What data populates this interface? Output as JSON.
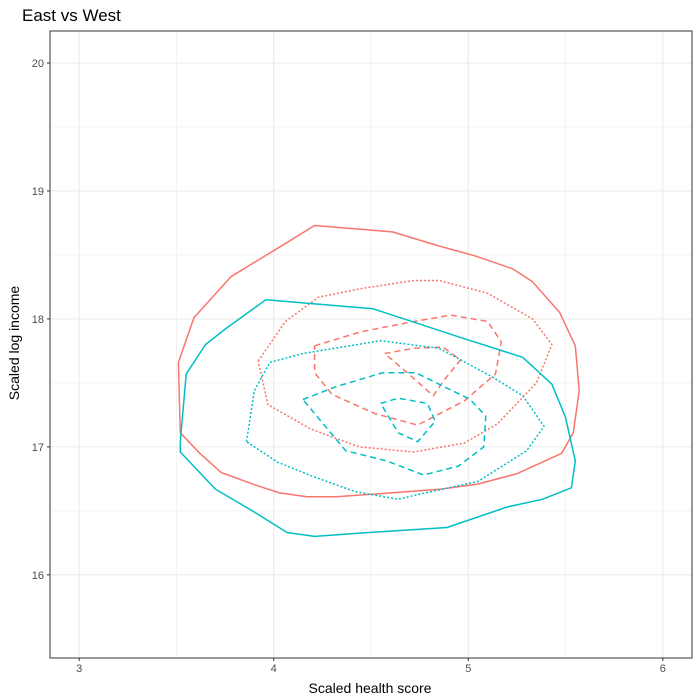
{
  "chart_data": {
    "type": "line",
    "subtype": "density-contour",
    "title": "East vs West",
    "xlabel": "Scaled health score",
    "ylabel": "Scaled log income",
    "xlim": [
      2.85,
      6.15
    ],
    "ylim": [
      15.35,
      20.25
    ],
    "xticks": [
      3,
      4,
      5,
      6
    ],
    "yticks": [
      16,
      17,
      18,
      19,
      20
    ],
    "grid": true,
    "legend": "none",
    "colors": {
      "red": "#F8766D",
      "teal": "#00BFC4",
      "grid": "#EBEBEB",
      "border": "#333333"
    },
    "series": [
      {
        "color": "#F8766D",
        "dash": "solid",
        "points": [
          [
            3.51,
            17.66
          ],
          [
            3.59,
            18.01
          ],
          [
            3.78,
            18.33
          ],
          [
            4.05,
            18.58
          ],
          [
            4.21,
            18.73
          ],
          [
            4.61,
            18.68
          ],
          [
            4.85,
            18.57
          ],
          [
            5.04,
            18.49
          ],
          [
            5.23,
            18.39
          ],
          [
            5.33,
            18.29
          ],
          [
            5.47,
            18.05
          ],
          [
            5.55,
            17.79
          ],
          [
            5.57,
            17.44
          ],
          [
            5.54,
            17.11
          ],
          [
            5.48,
            16.95
          ],
          [
            5.25,
            16.79
          ],
          [
            5.05,
            16.71
          ],
          [
            4.86,
            16.67
          ],
          [
            4.6,
            16.64
          ],
          [
            4.32,
            16.61
          ],
          [
            4.17,
            16.61
          ],
          [
            4.03,
            16.64
          ],
          [
            3.91,
            16.7
          ],
          [
            3.73,
            16.8
          ],
          [
            3.62,
            16.95
          ],
          [
            3.52,
            17.11
          ],
          [
            3.51,
            17.66
          ]
        ]
      },
      {
        "color": "#F8766D",
        "dash": "dotted",
        "points": [
          [
            3.92,
            17.67
          ],
          [
            4.06,
            17.98
          ],
          [
            4.23,
            18.17
          ],
          [
            4.46,
            18.24
          ],
          [
            4.72,
            18.3
          ],
          [
            4.85,
            18.3
          ],
          [
            5.1,
            18.2
          ],
          [
            5.33,
            18.0
          ],
          [
            5.43,
            17.8
          ],
          [
            5.35,
            17.5
          ],
          [
            5.15,
            17.18
          ],
          [
            4.98,
            17.03
          ],
          [
            4.72,
            16.96
          ],
          [
            4.44,
            17.0
          ],
          [
            4.19,
            17.14
          ],
          [
            3.97,
            17.33
          ],
          [
            3.92,
            17.67
          ]
        ]
      },
      {
        "color": "#F8766D",
        "dash": "dashed",
        "points": [
          [
            4.21,
            17.79
          ],
          [
            4.45,
            17.9
          ],
          [
            4.72,
            17.98
          ],
          [
            4.91,
            18.03
          ],
          [
            5.1,
            17.98
          ],
          [
            5.17,
            17.82
          ],
          [
            5.14,
            17.57
          ],
          [
            4.98,
            17.36
          ],
          [
            4.74,
            17.17
          ],
          [
            4.52,
            17.26
          ],
          [
            4.3,
            17.41
          ],
          [
            4.21,
            17.58
          ],
          [
            4.21,
            17.79
          ]
        ]
      },
      {
        "color": "#F8766D",
        "dash": "dashed",
        "points": [
          [
            4.57,
            17.73
          ],
          [
            4.72,
            17.77
          ],
          [
            4.87,
            17.78
          ],
          [
            4.96,
            17.68
          ],
          [
            4.88,
            17.53
          ],
          [
            4.82,
            17.4
          ],
          [
            4.67,
            17.6
          ],
          [
            4.57,
            17.73
          ]
        ]
      },
      {
        "color": "#00BFC4",
        "dash": "solid",
        "points": [
          [
            3.52,
            17.04
          ],
          [
            3.55,
            17.57
          ],
          [
            3.65,
            17.8
          ],
          [
            3.75,
            17.92
          ],
          [
            3.96,
            18.15
          ],
          [
            4.51,
            18.08
          ],
          [
            4.95,
            17.86
          ],
          [
            5.28,
            17.7
          ],
          [
            5.43,
            17.49
          ],
          [
            5.5,
            17.23
          ],
          [
            5.55,
            16.89
          ],
          [
            5.53,
            16.68
          ],
          [
            5.38,
            16.59
          ],
          [
            5.2,
            16.53
          ],
          [
            4.89,
            16.37
          ],
          [
            4.48,
            16.33
          ],
          [
            4.21,
            16.3
          ],
          [
            4.07,
            16.33
          ],
          [
            3.89,
            16.5
          ],
          [
            3.7,
            16.67
          ],
          [
            3.52,
            16.96
          ],
          [
            3.52,
            17.04
          ]
        ]
      },
      {
        "color": "#00BFC4",
        "dash": "dotted",
        "points": [
          [
            3.86,
            17.04
          ],
          [
            3.9,
            17.44
          ],
          [
            3.98,
            17.66
          ],
          [
            4.15,
            17.73
          ],
          [
            4.55,
            17.83
          ],
          [
            4.85,
            17.77
          ],
          [
            5.12,
            17.55
          ],
          [
            5.28,
            17.4
          ],
          [
            5.39,
            17.16
          ],
          [
            5.3,
            16.97
          ],
          [
            5.05,
            16.73
          ],
          [
            4.72,
            16.62
          ],
          [
            4.64,
            16.59
          ],
          [
            4.42,
            16.65
          ],
          [
            4.2,
            16.77
          ],
          [
            4.02,
            16.88
          ],
          [
            3.86,
            17.04
          ]
        ]
      },
      {
        "color": "#00BFC4",
        "dash": "dashed",
        "points": [
          [
            4.15,
            17.37
          ],
          [
            4.32,
            17.47
          ],
          [
            4.56,
            17.58
          ],
          [
            4.73,
            17.58
          ],
          [
            5.01,
            17.37
          ],
          [
            5.09,
            17.24
          ],
          [
            5.08,
            17.0
          ],
          [
            4.95,
            16.85
          ],
          [
            4.77,
            16.78
          ],
          [
            4.58,
            16.89
          ],
          [
            4.37,
            16.97
          ],
          [
            4.15,
            17.37
          ]
        ]
      },
      {
        "color": "#00BFC4",
        "dash": "dashed",
        "points": [
          [
            4.55,
            17.34
          ],
          [
            4.64,
            17.38
          ],
          [
            4.79,
            17.34
          ],
          [
            4.83,
            17.2
          ],
          [
            4.74,
            17.04
          ],
          [
            4.64,
            17.11
          ],
          [
            4.55,
            17.34
          ]
        ]
      }
    ]
  }
}
